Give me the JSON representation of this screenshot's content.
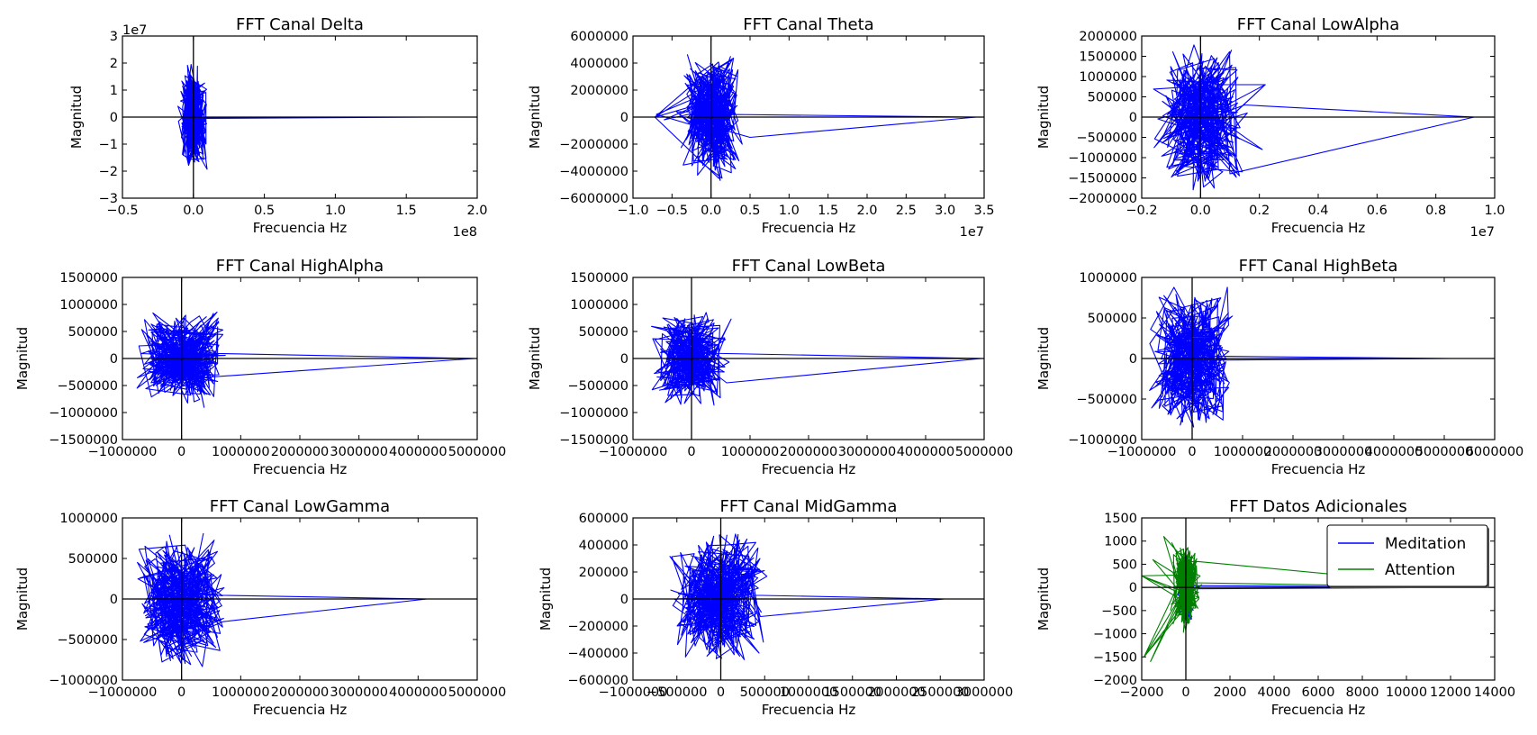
{
  "chart_data": [
    {
      "type": "line",
      "title": "FFT Canal Delta",
      "xlabel": "Frecuencia Hz",
      "ylabel": "Magnitud",
      "xlim": [
        -0.5,
        2.0
      ],
      "ylim": [
        -3,
        3
      ],
      "xticks": [
        -0.5,
        0.0,
        0.5,
        1.0,
        1.5,
        2.0
      ],
      "xtick_labels": [
        "−0.5",
        "0.0",
        "0.5",
        "1.0",
        "1.5",
        "2.0"
      ],
      "yticks": [
        -3,
        -2,
        -1,
        0,
        1,
        2,
        3
      ],
      "ytick_labels": [
        "−3",
        "−2",
        "−1",
        "0",
        "1",
        "2",
        "3"
      ],
      "x_offset_text": "1e8",
      "y_offset_text": "1e7",
      "series": [
        {
          "color": "#0000ff",
          "cluster": {
            "xspan": 0.11,
            "yspan": 2.0,
            "n": 260
          },
          "tail": [
            [
              -0.02,
              -0.02
            ],
            [
              1.65,
              0.0
            ],
            [
              0.08,
              -0.05
            ]
          ]
        }
      ]
    },
    {
      "type": "line",
      "title": "FFT Canal Theta",
      "xlabel": "Frecuencia Hz",
      "ylabel": "Magnitud",
      "xlim": [
        -1.0,
        3.5
      ],
      "ylim": [
        -6000000,
        6000000
      ],
      "xticks": [
        -1.0,
        -0.5,
        0.0,
        0.5,
        1.0,
        1.5,
        2.0,
        2.5,
        3.0,
        3.5
      ],
      "xtick_labels": [
        "−1.0",
        "−0.5",
        "0.0",
        "0.5",
        "1.0",
        "1.5",
        "2.0",
        "2.5",
        "3.0",
        "3.5"
      ],
      "yticks": [
        -6000000,
        -4000000,
        -2000000,
        0,
        2000000,
        4000000,
        6000000
      ],
      "ytick_labels": [
        "−6000000",
        "−4000000",
        "−2000000",
        "0",
        "2000000",
        "4000000",
        "6000000"
      ],
      "x_offset_text": "1e7",
      "y_offset_text": "",
      "series": [
        {
          "color": "#0000ff",
          "cluster": {
            "xspan": 0.45,
            "yspan": 4800000,
            "n": 320
          },
          "tail": [
            [
              0.5,
              -1500000
            ],
            [
              3.4,
              0
            ],
            [
              0.2,
              200000
            ]
          ],
          "spikes": [
            [
              -0.72,
              0
            ],
            [
              -0.6,
              -200000
            ],
            [
              -0.7,
              200000
            ]
          ]
        }
      ]
    },
    {
      "type": "line",
      "title": "FFT Canal LowAlpha",
      "xlabel": "Frecuencia Hz",
      "ylabel": "Magnitud",
      "xlim": [
        -0.2,
        1.0
      ],
      "ylim": [
        -2000000,
        2000000
      ],
      "xticks": [
        -0.2,
        0.0,
        0.2,
        0.4,
        0.6,
        0.8,
        1.0
      ],
      "xtick_labels": [
        "−0.2",
        "0.0",
        "0.2",
        "0.4",
        "0.6",
        "0.8",
        "1.0"
      ],
      "yticks": [
        -2000000,
        -1500000,
        -1000000,
        -500000,
        0,
        500000,
        1000000,
        1500000,
        2000000
      ],
      "ytick_labels": [
        "−2000000",
        "−1500000",
        "−1000000",
        "−500000",
        "0",
        "500000",
        "1000000",
        "1500000",
        "2000000"
      ],
      "x_offset_text": "1e7",
      "y_offset_text": "",
      "series": [
        {
          "color": "#0000ff",
          "cluster": {
            "xspan": 0.17,
            "yspan": 1900000,
            "n": 300
          },
          "tail": [
            [
              0.1,
              -1400000
            ],
            [
              0.93,
              0
            ],
            [
              0.15,
              300000
            ]
          ],
          "spikes": [
            [
              0.22,
              800000
            ],
            [
              0.21,
              -800000
            ]
          ]
        }
      ]
    },
    {
      "type": "line",
      "title": "FFT Canal HighAlpha",
      "xlabel": "Frecuencia Hz",
      "ylabel": "Magnitud",
      "xlim": [
        -1000000,
        5000000
      ],
      "ylim": [
        -1500000,
        1500000
      ],
      "xticks": [
        -1000000,
        0,
        1000000,
        2000000,
        3000000,
        4000000,
        5000000
      ],
      "xtick_labels": [
        "−1000000",
        "0",
        "1000000",
        "2000000",
        "3000000",
        "4000000",
        "5000000"
      ],
      "yticks": [
        -1500000,
        -1000000,
        -500000,
        0,
        500000,
        1000000,
        1500000
      ],
      "ytick_labels": [
        "−1500000",
        "−1000000",
        "−500000",
        "0",
        "500000",
        "1000000",
        "1500000"
      ],
      "x_offset_text": "",
      "y_offset_text": "",
      "series": [
        {
          "color": "#0000ff",
          "cluster": {
            "xspan": 850000,
            "yspan": 950000,
            "n": 320
          },
          "tail": [
            [
              400000,
              -350000
            ],
            [
              4950000,
              0
            ],
            [
              300000,
              100000
            ]
          ]
        }
      ]
    },
    {
      "type": "line",
      "title": "FFT Canal LowBeta",
      "xlabel": "Frecuencia Hz",
      "ylabel": "Magnitud",
      "xlim": [
        -1000000,
        5000000
      ],
      "ylim": [
        -1500000,
        1500000
      ],
      "xticks": [
        -1000000,
        0,
        1000000,
        2000000,
        3000000,
        4000000,
        5000000
      ],
      "xtick_labels": [
        "−1000000",
        "0",
        "1000000",
        "2000000",
        "3000000",
        "4000000",
        "5000000"
      ],
      "yticks": [
        -1500000,
        -1000000,
        -500000,
        0,
        500000,
        1000000,
        1500000
      ],
      "ytick_labels": [
        "−1500000",
        "−1000000",
        "−500000",
        "0",
        "500000",
        "1000000",
        "1500000"
      ],
      "x_offset_text": "",
      "y_offset_text": "",
      "series": [
        {
          "color": "#0000ff",
          "cluster": {
            "xspan": 720000,
            "yspan": 950000,
            "n": 300
          },
          "tail": [
            [
              600000,
              -450000
            ],
            [
              4950000,
              0
            ],
            [
              200000,
              100000
            ]
          ]
        }
      ]
    },
    {
      "type": "line",
      "title": "FFT Canal HighBeta",
      "xlabel": "Frecuencia Hz",
      "ylabel": "Magnitud",
      "xlim": [
        -1000000,
        6000000
      ],
      "ylim": [
        -1000000,
        1000000
      ],
      "xticks": [
        -1000000,
        0,
        1000000,
        2000000,
        3000000,
        4000000,
        5000000,
        6000000
      ],
      "xtick_labels": [
        "−1000000",
        "0",
        "1000000",
        "2000000",
        "3000000",
        "4000000",
        "5000000",
        "6000000"
      ],
      "yticks": [
        -1000000,
        -500000,
        0,
        500000,
        1000000
      ],
      "ytick_labels": [
        "−1000000",
        "−500000",
        "0",
        "500000",
        "1000000"
      ],
      "x_offset_text": "",
      "y_offset_text": "",
      "series": [
        {
          "color": "#0000ff",
          "cluster": {
            "xspan": 900000,
            "yspan": 950000,
            "n": 320
          },
          "tail": [
            [
              300000,
              30000
            ],
            [
              5100000,
              0
            ],
            [
              200000,
              -20000
            ]
          ]
        }
      ]
    },
    {
      "type": "line",
      "title": "FFT Canal LowGamma",
      "xlabel": "Frecuencia Hz",
      "ylabel": "Magnitud",
      "xlim": [
        -1000000,
        5000000
      ],
      "ylim": [
        -1000000,
        1000000
      ],
      "xticks": [
        -1000000,
        0,
        1000000,
        2000000,
        3000000,
        4000000,
        5000000
      ],
      "xtick_labels": [
        "−1000000",
        "0",
        "1000000",
        "2000000",
        "3000000",
        "4000000",
        "5000000"
      ],
      "yticks": [
        -1000000,
        -500000,
        0,
        500000,
        1000000
      ],
      "ytick_labels": [
        "−1000000",
        "−500000",
        "0",
        "500000",
        "1000000"
      ],
      "x_offset_text": "",
      "y_offset_text": "",
      "series": [
        {
          "color": "#0000ff",
          "cluster": {
            "xspan": 820000,
            "yspan": 880000,
            "n": 320
          },
          "tail": [
            [
              700000,
              -280000
            ],
            [
              4150000,
              0
            ],
            [
              300000,
              50000
            ]
          ]
        }
      ]
    },
    {
      "type": "line",
      "title": "FFT Canal MidGamma",
      "xlabel": "Frecuencia Hz",
      "ylabel": "Magnitud",
      "xlim": [
        -1000000,
        3000000
      ],
      "ylim": [
        -600000,
        600000
      ],
      "xticks": [
        -1000000,
        -500000,
        0,
        500000,
        1000000,
        1500000,
        2000000,
        2500000,
        3000000
      ],
      "xtick_labels": [
        "−1000000",
        "−500000",
        "0",
        "500000",
        "1000000",
        "1500000",
        "2000000",
        "2500000",
        "3000000"
      ],
      "yticks": [
        -600000,
        -400000,
        -200000,
        0,
        200000,
        400000,
        600000
      ],
      "ytick_labels": [
        "−600000",
        "−400000",
        "−200000",
        "0",
        "200000",
        "400000",
        "600000"
      ],
      "x_offset_text": "",
      "y_offset_text": "",
      "series": [
        {
          "color": "#0000ff",
          "cluster": {
            "xspan": 600000,
            "yspan": 540000,
            "n": 320
          },
          "tail": [
            [
              450000,
              -130000
            ],
            [
              2550000,
              0
            ],
            [
              200000,
              30000
            ]
          ]
        }
      ]
    },
    {
      "type": "line",
      "title": "FFT Datos Adicionales",
      "xlabel": "Frecuencia Hz",
      "ylabel": "Magnitud",
      "xlim": [
        -2000,
        14000
      ],
      "ylim": [
        -2000,
        1500
      ],
      "xticks": [
        -2000,
        0,
        2000,
        4000,
        6000,
        8000,
        10000,
        12000,
        14000
      ],
      "xtick_labels": [
        "−2000",
        "0",
        "2000",
        "4000",
        "6000",
        "8000",
        "10000",
        "12000",
        "14000"
      ],
      "yticks": [
        -2000,
        -1500,
        -1000,
        -500,
        0,
        500,
        1000,
        1500
      ],
      "ytick_labels": [
        "−2000",
        "−1500",
        "−1000",
        "−500",
        "0",
        "500",
        "1000",
        "1500"
      ],
      "x_offset_text": "",
      "y_offset_text": "",
      "legend": {
        "placement": "upper-right"
      },
      "series": [
        {
          "name": "Meditation",
          "color": "#0000ff",
          "cluster": {
            "xspan": 380,
            "yspan": 850,
            "n": 160
          },
          "tail": [
            [
              100,
              40
            ],
            [
              12800,
              0
            ],
            [
              80,
              -30
            ]
          ]
        },
        {
          "name": "Attention",
          "color": "#008000",
          "cluster": {
            "xspan": 750,
            "yspan": 1000,
            "n": 200
          },
          "tail": [
            [
              500,
              560
            ],
            [
              12900,
              0
            ],
            [
              300,
              100
            ]
          ],
          "spikes": [
            [
              -2000,
              250
            ],
            [
              -1900,
              -1500
            ],
            [
              -1600,
              -1600
            ],
            [
              -1000,
              1100
            ],
            [
              -1500,
              600
            ]
          ]
        }
      ]
    }
  ]
}
